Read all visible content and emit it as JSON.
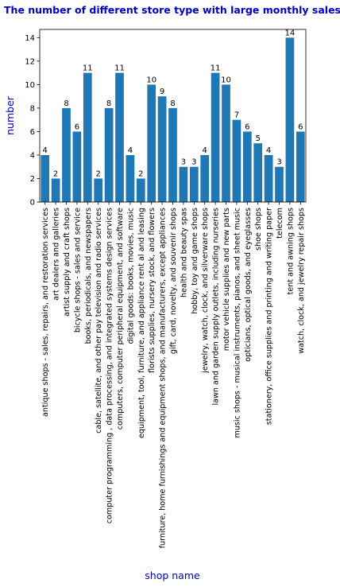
{
  "colors": {
    "bar": "#1f77b4",
    "label": "#0000cc",
    "axis": "#000000"
  },
  "chart_data": {
    "type": "bar",
    "title": "The number of different store type with large monthly sales",
    "xlabel": "shop name",
    "ylabel": "number",
    "ylim": [
      0,
      14.7
    ],
    "yticks": [
      0,
      2,
      4,
      6,
      8,
      10,
      12,
      14
    ],
    "grid": false,
    "legend": "none",
    "categories": [
      "antique shops - sales, repairs, and restoration services",
      "art dealers and galleries",
      "artist supply and craft shops",
      "bicycle shops - sales and service",
      "books, periodicals, and newspapers",
      "cable, satellite, and other pay television and radio services",
      "computer programming , data processing, and integrated systems design services",
      "computers, computer peripheral equipment, and software",
      "digital goods: books, movies, music",
      "equipment, tool, furniture, and appliance rent al and leasing",
      "florists supplies, nursery stock, and flowers",
      "furniture, home furnishings and equipment shops, and manufacturers, except appliances",
      "gift, card, novelty, and souvenir shops",
      "health and beauty spas",
      "hobby, toy and game shops",
      "jewelry, watch, clock, and silverware shops",
      "lawn and garden supply outlets, including nurseries",
      "motor vehicle supplies and new parts",
      "music shops - musical instruments, pianos, and sheet music",
      "opticians, optical goods, and eyeglasses",
      "shoe shops",
      "stationery, office supplies and printing and writing paper",
      "telecom",
      "tent and awning shops",
      "watch, clock, and jewelry repair shops"
    ],
    "values": [
      4,
      2,
      8,
      6,
      11,
      2,
      8,
      11,
      4,
      2,
      10,
      9,
      8,
      3,
      3,
      4,
      11,
      10,
      7,
      6,
      5,
      4,
      3,
      14,
      6
    ]
  }
}
